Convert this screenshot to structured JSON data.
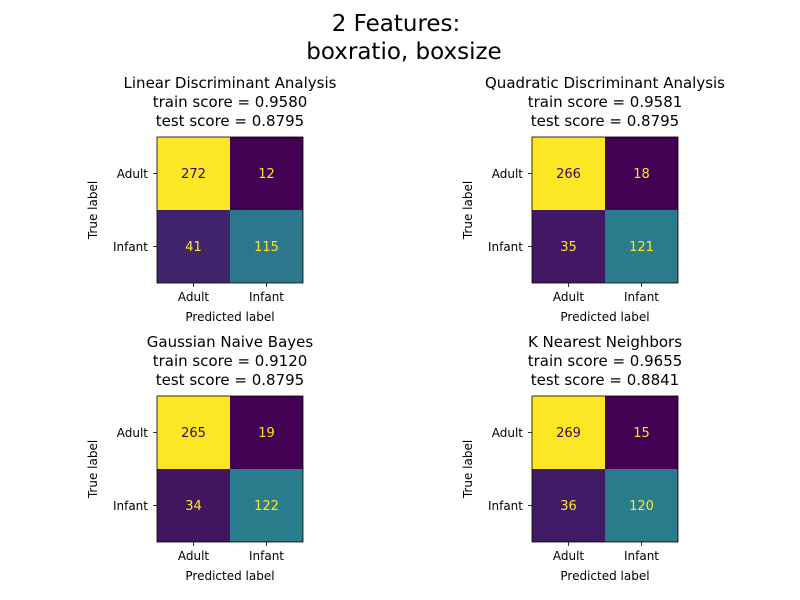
{
  "suptitle": [
    "2 Features:",
    "boxratio, boxsize"
  ],
  "colors": {
    "high": "#fde725",
    "mid_high": "#21918c",
    "low_mid": "#433e85",
    "low": "#440154",
    "text_on_light": "#440154",
    "text_on_dark": "#fde725"
  },
  "chart_data": [
    {
      "type": "heatmap",
      "title": [
        "Linear Discriminant Analysis",
        "train score = 0.9580",
        "test score = 0.8795"
      ],
      "xlabel": "Predicted label",
      "ylabel": "True label",
      "x_categories": [
        "Adult",
        "Infant"
      ],
      "y_categories": [
        "Adult",
        "Infant"
      ],
      "values": [
        [
          272,
          12
        ],
        [
          41,
          115
        ]
      ]
    },
    {
      "type": "heatmap",
      "title": [
        "Quadratic Discriminant Analysis",
        "train score = 0.9581",
        "test score = 0.8795"
      ],
      "xlabel": "Predicted label",
      "ylabel": "True label",
      "x_categories": [
        "Adult",
        "Infant"
      ],
      "y_categories": [
        "Adult",
        "Infant"
      ],
      "values": [
        [
          266,
          18
        ],
        [
          35,
          121
        ]
      ]
    },
    {
      "type": "heatmap",
      "title": [
        "Gaussian Naive Bayes",
        "train score = 0.9120",
        "test score = 0.8795"
      ],
      "xlabel": "Predicted label",
      "ylabel": "True label",
      "x_categories": [
        "Adult",
        "Infant"
      ],
      "y_categories": [
        "Adult",
        "Infant"
      ],
      "values": [
        [
          265,
          19
        ],
        [
          34,
          122
        ]
      ]
    },
    {
      "type": "heatmap",
      "title": [
        "K Nearest Neighbors",
        "train score = 0.9655",
        "test score = 0.8841"
      ],
      "xlabel": "Predicted label",
      "ylabel": "True label",
      "x_categories": [
        "Adult",
        "Infant"
      ],
      "y_categories": [
        "Adult",
        "Infant"
      ],
      "values": [
        [
          269,
          15
        ],
        [
          36,
          120
        ]
      ]
    }
  ]
}
